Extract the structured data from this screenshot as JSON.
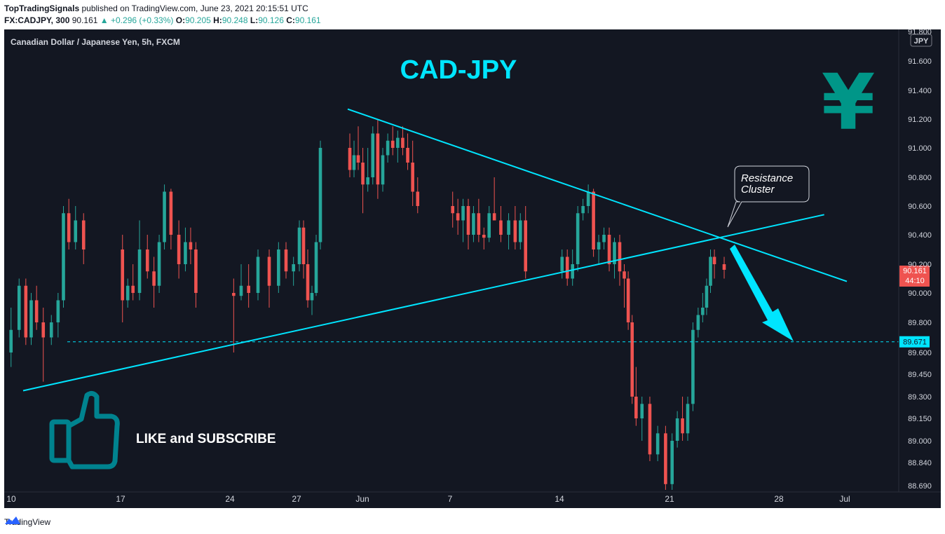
{
  "header": {
    "publisher": "TopTradingSignals",
    "published_text": "published on TradingView.com, June 23, 2021 20:15:51 UTC",
    "symbol": "FX:CADJPY, 300",
    "last": "90.161",
    "change_arrow": "▲",
    "change": "+0.296 (+0.33%)",
    "o_label": "O:",
    "o_value": "90.205",
    "h_label": "H:",
    "h_value": "90.248",
    "l_label": "L:",
    "l_value": "90.126",
    "c_label": "C:",
    "c_value": "90.161"
  },
  "footer": {
    "brand": "TradingView"
  },
  "colors": {
    "background": "#131722",
    "up": "#26a69a",
    "down": "#ef5350",
    "accent": "#00e5ff",
    "price_tag": "#ef5350",
    "level_tag": "#00e5ff"
  },
  "chart_data": {
    "type": "candlestick",
    "instrument": "Canadian Dollar / Japanese Yen, 5h, FXCM",
    "title": "CAD-JPY",
    "currency_badge": "JPY",
    "currency_symbol": "¥",
    "y_ticks": [
      "91.800",
      "91.600",
      "91.400",
      "91.200",
      "91.000",
      "90.800",
      "90.600",
      "90.400",
      "90.200",
      "90.000",
      "89.800",
      "89.600",
      "89.450",
      "89.300",
      "89.150",
      "89.000",
      "88.840",
      "88.690"
    ],
    "x_ticks": [
      "10",
      "17",
      "24",
      "27",
      "Jun",
      "7",
      "14",
      "21",
      "28",
      "Jul"
    ],
    "ylim": [
      88.69,
      91.8
    ],
    "current_price": "90.161",
    "countdown": "44:10",
    "horizontal_level": "89.671",
    "annotations": {
      "resistance": [
        "Resistance",
        "Cluster"
      ],
      "cta": "LIKE and SUBSCRIBE"
    },
    "trendlines": [
      {
        "name": "descending-resistance",
        "x": [
          "May 31",
          "Jul 1"
        ],
        "y": [
          91.27,
          90.08
        ]
      },
      {
        "name": "ascending-support",
        "x": [
          "May 11",
          "Jun 30"
        ],
        "y": [
          89.34,
          90.54
        ]
      }
    ],
    "candles": [
      {
        "t": "May 10",
        "o": 89.6,
        "h": 89.9,
        "l": 89.5,
        "c": 89.75
      },
      {
        "t": "May 10",
        "o": 89.75,
        "h": 90.1,
        "l": 89.7,
        "c": 90.05
      },
      {
        "t": "May 11",
        "o": 90.05,
        "h": 90.1,
        "l": 89.65,
        "c": 89.7
      },
      {
        "t": "May 11",
        "o": 89.7,
        "h": 90.0,
        "l": 89.65,
        "c": 89.95
      },
      {
        "t": "May 11",
        "o": 89.95,
        "h": 90.05,
        "l": 89.75,
        "c": 89.8
      },
      {
        "t": "May 12",
        "o": 89.8,
        "h": 89.9,
        "l": 89.4,
        "c": 89.7
      },
      {
        "t": "May 12",
        "o": 89.7,
        "h": 89.85,
        "l": 89.65,
        "c": 89.8
      },
      {
        "t": "May 13",
        "o": 89.8,
        "h": 90.0,
        "l": 89.7,
        "c": 89.95
      },
      {
        "t": "May 13",
        "o": 89.95,
        "h": 90.6,
        "l": 89.9,
        "c": 90.55
      },
      {
        "t": "May 13",
        "o": 90.55,
        "h": 90.65,
        "l": 90.3,
        "c": 90.35
      },
      {
        "t": "May 14",
        "o": 90.35,
        "h": 90.6,
        "l": 90.3,
        "c": 90.5
      },
      {
        "t": "May 14",
        "o": 90.5,
        "h": 90.55,
        "l": 90.2,
        "c": 90.3
      },
      {
        "t": "May 17",
        "o": 90.3,
        "h": 90.4,
        "l": 89.8,
        "c": 89.95
      },
      {
        "t": "May 17",
        "o": 89.95,
        "h": 90.1,
        "l": 89.9,
        "c": 90.05
      },
      {
        "t": "May 17",
        "o": 90.05,
        "h": 90.2,
        "l": 89.95,
        "c": 90.0
      },
      {
        "t": "May 18",
        "o": 90.0,
        "h": 90.5,
        "l": 89.95,
        "c": 90.3
      },
      {
        "t": "May 18",
        "o": 90.3,
        "h": 90.4,
        "l": 90.1,
        "c": 90.15
      },
      {
        "t": "May 19",
        "o": 90.15,
        "h": 90.25,
        "l": 89.9,
        "c": 90.05
      },
      {
        "t": "May 19",
        "o": 90.05,
        "h": 90.4,
        "l": 90.0,
        "c": 90.35
      },
      {
        "t": "May 19",
        "o": 90.35,
        "h": 90.75,
        "l": 90.3,
        "c": 90.7
      },
      {
        "t": "May 20",
        "o": 90.7,
        "h": 90.72,
        "l": 90.3,
        "c": 90.4
      },
      {
        "t": "May 20",
        "o": 90.4,
        "h": 90.5,
        "l": 90.1,
        "c": 90.2
      },
      {
        "t": "May 21",
        "o": 90.2,
        "h": 90.45,
        "l": 90.15,
        "c": 90.35
      },
      {
        "t": "May 21",
        "o": 90.35,
        "h": 90.45,
        "l": 90.2,
        "c": 90.3
      },
      {
        "t": "May 21",
        "o": 90.3,
        "h": 90.35,
        "l": 89.9,
        "c": 90.0
      },
      {
        "t": "May 24",
        "o": 90.0,
        "h": 90.1,
        "l": 89.6,
        "c": 89.98
      },
      {
        "t": "May 24",
        "o": 89.98,
        "h": 90.2,
        "l": 89.95,
        "c": 90.05
      },
      {
        "t": "May 24",
        "o": 90.05,
        "h": 90.2,
        "l": 89.9,
        "c": 90.0
      },
      {
        "t": "May 25",
        "o": 90.0,
        "h": 90.3,
        "l": 89.95,
        "c": 90.25
      },
      {
        "t": "May 25",
        "o": 90.25,
        "h": 90.3,
        "l": 89.9,
        "c": 90.05
      },
      {
        "t": "May 26",
        "o": 90.05,
        "h": 90.35,
        "l": 90.0,
        "c": 90.3
      },
      {
        "t": "May 26",
        "o": 90.3,
        "h": 90.35,
        "l": 90.1,
        "c": 90.15
      },
      {
        "t": "May 26",
        "o": 90.15,
        "h": 90.25,
        "l": 90.05,
        "c": 90.2
      },
      {
        "t": "May 27",
        "o": 90.2,
        "h": 90.5,
        "l": 90.15,
        "c": 90.45
      },
      {
        "t": "May 27",
        "o": 90.45,
        "h": 90.5,
        "l": 90.1,
        "c": 90.2
      },
      {
        "t": "May 27",
        "o": 90.2,
        "h": 90.3,
        "l": 89.9,
        "c": 89.95
      },
      {
        "t": "May 28",
        "o": 89.95,
        "h": 90.05,
        "l": 89.85,
        "c": 90.0
      },
      {
        "t": "May 28",
        "o": 90.0,
        "h": 90.4,
        "l": 89.98,
        "c": 90.35
      },
      {
        "t": "May 28",
        "o": 90.35,
        "h": 91.05,
        "l": 90.3,
        "c": 91.0
      },
      {
        "t": "May 31",
        "o": 91.0,
        "h": 91.1,
        "l": 90.8,
        "c": 90.85
      },
      {
        "t": "May 31",
        "o": 90.85,
        "h": 91.05,
        "l": 90.8,
        "c": 90.95
      },
      {
        "t": "May 31",
        "o": 90.95,
        "h": 91.15,
        "l": 90.85,
        "c": 90.9
      },
      {
        "t": "Jun 1",
        "o": 90.9,
        "h": 91.0,
        "l": 90.55,
        "c": 90.75
      },
      {
        "t": "Jun 1",
        "o": 90.75,
        "h": 91.0,
        "l": 90.7,
        "c": 90.8
      },
      {
        "t": "Jun 1",
        "o": 90.8,
        "h": 91.15,
        "l": 90.75,
        "c": 91.1
      },
      {
        "t": "Jun 2",
        "o": 91.1,
        "h": 91.2,
        "l": 90.65,
        "c": 90.75
      },
      {
        "t": "Jun 2",
        "o": 90.75,
        "h": 91.0,
        "l": 90.7,
        "c": 90.95
      },
      {
        "t": "Jun 2",
        "o": 90.95,
        "h": 91.1,
        "l": 90.9,
        "c": 91.05
      },
      {
        "t": "Jun 3",
        "o": 91.05,
        "h": 91.15,
        "l": 90.95,
        "c": 91.0
      },
      {
        "t": "Jun 3",
        "o": 91.0,
        "h": 91.12,
        "l": 90.9,
        "c": 91.07
      },
      {
        "t": "Jun 3",
        "o": 91.07,
        "h": 91.15,
        "l": 90.95,
        "c": 91.0
      },
      {
        "t": "Jun 4",
        "o": 91.0,
        "h": 91.1,
        "l": 90.85,
        "c": 90.9
      },
      {
        "t": "Jun 4",
        "o": 90.9,
        "h": 91.05,
        "l": 90.6,
        "c": 90.7
      },
      {
        "t": "Jun 4",
        "o": 90.7,
        "h": 90.8,
        "l": 90.55,
        "c": 90.6
      },
      {
        "t": "Jun 7",
        "o": 90.6,
        "h": 90.7,
        "l": 90.45,
        "c": 90.55
      },
      {
        "t": "Jun 7",
        "o": 90.55,
        "h": 90.65,
        "l": 90.4,
        "c": 90.5
      },
      {
        "t": "Jun 7",
        "o": 90.5,
        "h": 90.65,
        "l": 90.35,
        "c": 90.6
      },
      {
        "t": "Jun 8",
        "o": 90.6,
        "h": 90.65,
        "l": 90.3,
        "c": 90.4
      },
      {
        "t": "Jun 8",
        "o": 90.4,
        "h": 90.6,
        "l": 90.35,
        "c": 90.55
      },
      {
        "t": "Jun 8",
        "o": 90.55,
        "h": 90.65,
        "l": 90.35,
        "c": 90.4
      },
      {
        "t": "Jun 9",
        "o": 90.4,
        "h": 90.45,
        "l": 90.3,
        "c": 90.38
      },
      {
        "t": "Jun 9",
        "o": 90.38,
        "h": 90.6,
        "l": 90.35,
        "c": 90.55
      },
      {
        "t": "Jun 9",
        "o": 90.55,
        "h": 90.8,
        "l": 90.5,
        "c": 90.5
      },
      {
        "t": "Jun 10",
        "o": 90.5,
        "h": 90.6,
        "l": 90.35,
        "c": 90.4
      },
      {
        "t": "Jun 10",
        "o": 90.4,
        "h": 90.55,
        "l": 90.3,
        "c": 90.5
      },
      {
        "t": "Jun 11",
        "o": 90.5,
        "h": 90.6,
        "l": 90.3,
        "c": 90.35
      },
      {
        "t": "Jun 11",
        "o": 90.35,
        "h": 90.55,
        "l": 90.3,
        "c": 90.5
      },
      {
        "t": "Jun 11",
        "o": 90.5,
        "h": 90.6,
        "l": 90.1,
        "c": 90.15
      },
      {
        "t": "Jun 14",
        "o": 90.15,
        "h": 90.3,
        "l": 90.1,
        "c": 90.25
      },
      {
        "t": "Jun 14",
        "o": 90.25,
        "h": 90.3,
        "l": 90.05,
        "c": 90.1
      },
      {
        "t": "Jun 14",
        "o": 90.1,
        "h": 90.3,
        "l": 90.05,
        "c": 90.2
      },
      {
        "t": "Jun 15",
        "o": 90.2,
        "h": 90.6,
        "l": 90.15,
        "c": 90.55
      },
      {
        "t": "Jun 15",
        "o": 90.55,
        "h": 90.65,
        "l": 90.5,
        "c": 90.6
      },
      {
        "t": "Jun 15",
        "o": 90.6,
        "h": 90.75,
        "l": 90.55,
        "c": 90.7
      },
      {
        "t": "Jun 16",
        "o": 90.7,
        "h": 90.72,
        "l": 90.25,
        "c": 90.3
      },
      {
        "t": "Jun 16",
        "o": 90.3,
        "h": 90.4,
        "l": 90.2,
        "c": 90.35
      },
      {
        "t": "Jun 16",
        "o": 90.35,
        "h": 90.45,
        "l": 90.3,
        "c": 90.4
      },
      {
        "t": "Jun 17",
        "o": 90.4,
        "h": 90.45,
        "l": 90.15,
        "c": 90.2
      },
      {
        "t": "Jun 17",
        "o": 90.2,
        "h": 90.38,
        "l": 90.1,
        "c": 90.35
      },
      {
        "t": "Jun 17",
        "o": 90.35,
        "h": 90.4,
        "l": 90.05,
        "c": 90.15
      },
      {
        "t": "Jun 18",
        "o": 90.15,
        "h": 90.2,
        "l": 89.9,
        "c": 90.1
      },
      {
        "t": "Jun 18",
        "o": 90.1,
        "h": 90.15,
        "l": 89.75,
        "c": 89.8
      },
      {
        "t": "Jun 18",
        "o": 89.8,
        "h": 89.85,
        "l": 89.25,
        "c": 89.3
      },
      {
        "t": "Jun 18",
        "o": 89.3,
        "h": 89.5,
        "l": 89.1,
        "c": 89.15
      },
      {
        "t": "Jun 19",
        "o": 89.15,
        "h": 89.3,
        "l": 89.0,
        "c": 89.25
      },
      {
        "t": "Jun 19",
        "o": 89.25,
        "h": 89.3,
        "l": 88.85,
        "c": 88.9
      },
      {
        "t": "Jun 20",
        "o": 88.9,
        "h": 89.1,
        "l": 88.85,
        "c": 89.05
      },
      {
        "t": "Jun 20",
        "o": 89.05,
        "h": 89.1,
        "l": 88.6,
        "c": 88.7
      },
      {
        "t": "Jun 21",
        "o": 88.7,
        "h": 89.05,
        "l": 88.65,
        "c": 89.0
      },
      {
        "t": "Jun 21",
        "o": 89.0,
        "h": 89.2,
        "l": 88.95,
        "c": 89.15
      },
      {
        "t": "Jun 21",
        "o": 89.15,
        "h": 89.3,
        "l": 89.0,
        "c": 89.05
      },
      {
        "t": "Jun 22",
        "o": 89.05,
        "h": 89.3,
        "l": 89.0,
        "c": 89.25
      },
      {
        "t": "Jun 22",
        "o": 89.25,
        "h": 89.8,
        "l": 89.2,
        "c": 89.75
      },
      {
        "t": "Jun 22",
        "o": 89.75,
        "h": 89.9,
        "l": 89.7,
        "c": 89.85
      },
      {
        "t": "Jun 23",
        "o": 89.85,
        "h": 90.0,
        "l": 89.8,
        "c": 89.9
      },
      {
        "t": "Jun 23",
        "o": 89.9,
        "h": 90.1,
        "l": 89.85,
        "c": 90.05
      },
      {
        "t": "Jun 23",
        "o": 90.05,
        "h": 90.3,
        "l": 90.0,
        "c": 90.25
      },
      {
        "t": "Jun 23",
        "o": 90.25,
        "h": 90.3,
        "l": 90.1,
        "c": 90.2
      },
      {
        "t": "Jun 24",
        "o": 90.2,
        "h": 90.25,
        "l": 90.1,
        "c": 90.161
      }
    ]
  }
}
